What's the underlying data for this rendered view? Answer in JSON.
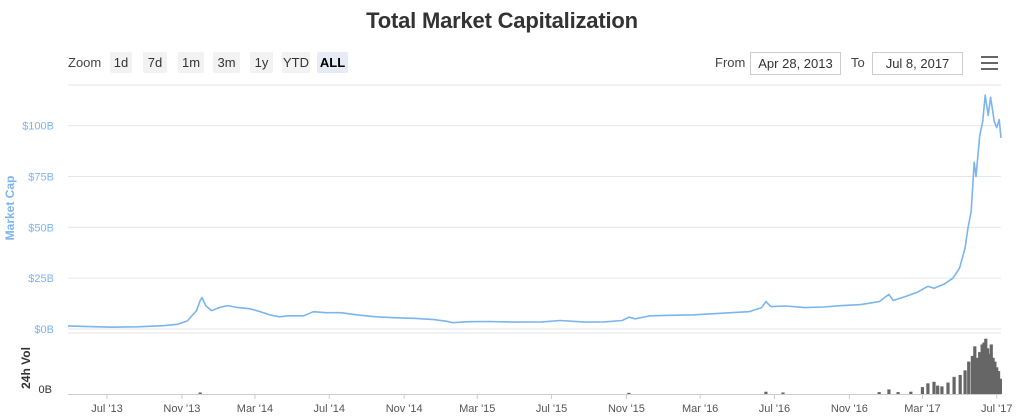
{
  "title": "Total Market Capitalization",
  "zoom": {
    "label": "Zoom",
    "buttons": [
      "1d",
      "7d",
      "1m",
      "3m",
      "1y",
      "YTD",
      "ALL"
    ],
    "active": "ALL"
  },
  "range": {
    "from_label": "From",
    "from_value": "Apr 28, 2013",
    "to_label": "To",
    "to_value": "Jul 8, 2017"
  },
  "colors": {
    "line": "#7cb5ec",
    "volume": "#666666",
    "axis_label": "#7cb5ec"
  },
  "chart_data": {
    "type": "line",
    "title": "Total Market Capitalization",
    "ylabel": "Market Cap",
    "yunit": "USD billions",
    "ylim": [
      0,
      120
    ],
    "yticks": [
      0,
      25,
      50,
      75,
      100
    ],
    "ytick_labels": [
      "$0B",
      "$25B",
      "$50B",
      "$75B",
      "$100B"
    ],
    "xlim": [
      "2013-04-28",
      "2017-07-08"
    ],
    "xticks": [
      "2013-07-01",
      "2013-11-01",
      "2014-03-01",
      "2014-07-01",
      "2014-11-01",
      "2015-03-01",
      "2015-07-01",
      "2015-11-01",
      "2016-03-01",
      "2016-07-01",
      "2016-11-01",
      "2017-03-01",
      "2017-07-01"
    ],
    "xtick_labels": [
      "Jul '13",
      "Nov '13",
      "Mar '14",
      "Jul '14",
      "Nov '14",
      "Mar '15",
      "Jul '15",
      "Nov '15",
      "Mar '16",
      "Jul '16",
      "Nov '16",
      "Mar '17",
      "Jul '17"
    ],
    "grid": true,
    "series": [
      {
        "values": [
          [
            "2013-04-28",
            1.5
          ],
          [
            "2013-06-01",
            1.2
          ],
          [
            "2013-07-10",
            0.9
          ],
          [
            "2013-08-20",
            1.1
          ],
          [
            "2013-10-01",
            1.6
          ],
          [
            "2013-10-25",
            2.3
          ],
          [
            "2013-11-10",
            4.0
          ],
          [
            "2013-11-25",
            9.0
          ],
          [
            "2013-12-01",
            14.0
          ],
          [
            "2013-12-04",
            15.5
          ],
          [
            "2013-12-10",
            11.5
          ],
          [
            "2013-12-20",
            9.0
          ],
          [
            "2014-01-01",
            10.5
          ],
          [
            "2014-01-15",
            11.5
          ],
          [
            "2014-02-01",
            10.5
          ],
          [
            "2014-02-20",
            10.0
          ],
          [
            "2014-03-10",
            8.5
          ],
          [
            "2014-03-25",
            7.0
          ],
          [
            "2014-04-10",
            6.0
          ],
          [
            "2014-04-25",
            6.5
          ],
          [
            "2014-05-20",
            6.5
          ],
          [
            "2014-06-05",
            8.5
          ],
          [
            "2014-06-25",
            8.0
          ],
          [
            "2014-07-20",
            8.0
          ],
          [
            "2014-08-15",
            7.0
          ],
          [
            "2014-09-15",
            6.0
          ],
          [
            "2014-10-20",
            5.5
          ],
          [
            "2014-11-20",
            5.2
          ],
          [
            "2014-12-20",
            4.6
          ],
          [
            "2015-01-10",
            3.8
          ],
          [
            "2015-01-20",
            3.1
          ],
          [
            "2015-02-15",
            3.6
          ],
          [
            "2015-03-20",
            3.7
          ],
          [
            "2015-05-01",
            3.4
          ],
          [
            "2015-06-15",
            3.5
          ],
          [
            "2015-07-15",
            4.2
          ],
          [
            "2015-08-25",
            3.4
          ],
          [
            "2015-09-25",
            3.5
          ],
          [
            "2015-10-25",
            4.2
          ],
          [
            "2015-11-05",
            5.8
          ],
          [
            "2015-11-15",
            5.0
          ],
          [
            "2015-12-10",
            6.5
          ],
          [
            "2016-01-20",
            6.8
          ],
          [
            "2016-02-20",
            7.0
          ],
          [
            "2016-03-20",
            7.5
          ],
          [
            "2016-04-20",
            8.0
          ],
          [
            "2016-05-20",
            8.5
          ],
          [
            "2016-06-10",
            10.5
          ],
          [
            "2016-06-17",
            13.5
          ],
          [
            "2016-06-25",
            11.0
          ],
          [
            "2016-07-20",
            11.3
          ],
          [
            "2016-08-20",
            10.5
          ],
          [
            "2016-09-20",
            10.8
          ],
          [
            "2016-10-20",
            11.5
          ],
          [
            "2016-11-20",
            12.0
          ],
          [
            "2016-12-20",
            13.5
          ],
          [
            "2017-01-05",
            17.0
          ],
          [
            "2017-01-12",
            14.0
          ],
          [
            "2017-02-01",
            16.0
          ],
          [
            "2017-02-20",
            18.0
          ],
          [
            "2017-03-10",
            21.0
          ],
          [
            "2017-03-20",
            20.0
          ],
          [
            "2017-04-05",
            22.0
          ],
          [
            "2017-04-20",
            25.0
          ],
          [
            "2017-05-01",
            30.0
          ],
          [
            "2017-05-10",
            40.0
          ],
          [
            "2017-05-15",
            50.0
          ],
          [
            "2017-05-20",
            58.0
          ],
          [
            "2017-05-25",
            82.0
          ],
          [
            "2017-05-28",
            75.0
          ],
          [
            "2017-06-03",
            95.0
          ],
          [
            "2017-06-08",
            102.0
          ],
          [
            "2017-06-12",
            115.0
          ],
          [
            "2017-06-17",
            105.0
          ],
          [
            "2017-06-21",
            114.0
          ],
          [
            "2017-06-27",
            102.0
          ],
          [
            "2017-07-01",
            99.0
          ],
          [
            "2017-07-05",
            103.0
          ],
          [
            "2017-07-08",
            94.0
          ]
        ]
      }
    ],
    "volume": {
      "ylabel": "24h Vol",
      "ytick_labels": [
        "0B"
      ],
      "unit": "USD billions",
      "ylim": [
        0,
        1.6
      ],
      "values": [
        [
          "2013-12-01",
          0.04
        ],
        [
          "2015-11-05",
          0.03
        ],
        [
          "2016-06-17",
          0.06
        ],
        [
          "2016-07-15",
          0.04
        ],
        [
          "2016-12-20",
          0.05
        ],
        [
          "2017-01-05",
          0.12
        ],
        [
          "2017-01-20",
          0.05
        ],
        [
          "2017-02-10",
          0.06
        ],
        [
          "2017-03-01",
          0.18
        ],
        [
          "2017-03-10",
          0.28
        ],
        [
          "2017-03-20",
          0.32
        ],
        [
          "2017-03-26",
          0.22
        ],
        [
          "2017-04-02",
          0.2
        ],
        [
          "2017-04-12",
          0.3
        ],
        [
          "2017-04-22",
          0.45
        ],
        [
          "2017-05-02",
          0.5
        ],
        [
          "2017-05-10",
          0.62
        ],
        [
          "2017-05-16",
          0.85
        ],
        [
          "2017-05-22",
          1.0
        ],
        [
          "2017-05-26",
          1.25
        ],
        [
          "2017-05-30",
          0.95
        ],
        [
          "2017-06-03",
          1.1
        ],
        [
          "2017-06-07",
          1.3
        ],
        [
          "2017-06-10",
          1.35
        ],
        [
          "2017-06-13",
          1.45
        ],
        [
          "2017-06-16",
          1.2
        ],
        [
          "2017-06-19",
          1.05
        ],
        [
          "2017-06-22",
          1.3
        ],
        [
          "2017-06-25",
          0.95
        ],
        [
          "2017-06-28",
          0.85
        ],
        [
          "2017-07-01",
          0.7
        ],
        [
          "2017-07-04",
          0.6
        ],
        [
          "2017-07-07",
          0.4
        ]
      ]
    }
  }
}
